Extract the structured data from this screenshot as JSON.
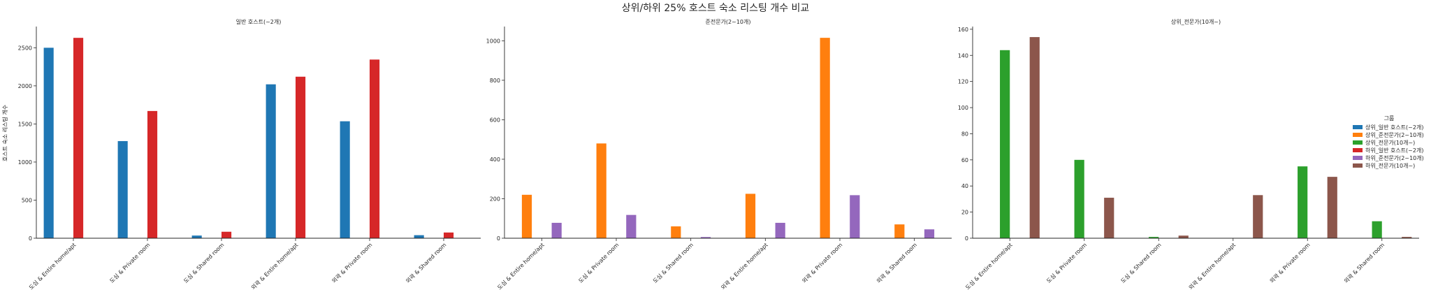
{
  "chart_data": {
    "type": "bar",
    "title": "상위/하위 25% 호스트 숙소 리스팅 개수 비교",
    "ylabel": "호스트 숙소 리스팅 개수",
    "categories": [
      "도심 & Entire home/apt",
      "도심 & Private room",
      "도심 & Shared room",
      "외곽 & Entire home/apt",
      "외곽 & Private room",
      "외곽 & Shared room"
    ],
    "legend": {
      "title": "그룹",
      "placement": "center-right",
      "entries": [
        {
          "name": "상위_일반 호스트(~2개)",
          "color": "#1f77b4"
        },
        {
          "name": "상위_준전문가(2~10개)",
          "color": "#ff7f0e"
        },
        {
          "name": "상위_전문가(10개~)",
          "color": "#2ca02c"
        },
        {
          "name": "하위_일반 호스트(~2개)",
          "color": "#d62728"
        },
        {
          "name": "하위_준전문가(2~10개)",
          "color": "#9467bd"
        },
        {
          "name": "하위_전문가(10개~)",
          "color": "#8c564b"
        }
      ]
    },
    "panels": [
      {
        "title": "일반 호스트(~2개)",
        "ylim": [
          0,
          2760
        ],
        "yticks": [
          0,
          500,
          1000,
          1500,
          2000,
          2500
        ],
        "series": [
          {
            "name": "상위_일반 호스트(~2개)",
            "color": "#1f77b4",
            "slot": 0,
            "values": [
              2500,
              1275,
              35,
              2020,
              1535,
              40
            ]
          },
          {
            "name": "하위_일반 호스트(~2개)",
            "color": "#d62728",
            "slot": 3,
            "values": [
              2630,
              1670,
              85,
              2120,
              2345,
              75
            ]
          }
        ]
      },
      {
        "title": "준전문가(2~10개)",
        "ylim": [
          0,
          1065
        ],
        "yticks": [
          0,
          200,
          400,
          600,
          800,
          1000
        ],
        "series": [
          {
            "name": "상위_준전문가(2~10개)",
            "color": "#ff7f0e",
            "slot": 1,
            "values": [
              220,
              480,
              60,
              225,
              1015,
              70
            ]
          },
          {
            "name": "하위_준전문가(2~10개)",
            "color": "#9467bd",
            "slot": 4,
            "values": [
              78,
              118,
              6,
              78,
              218,
              45
            ]
          }
        ]
      },
      {
        "title": "상위_전문가(10개~)",
        "ylim": [
          0,
          161
        ],
        "yticks": [
          0,
          20,
          40,
          60,
          80,
          100,
          120,
          140,
          160
        ],
        "series": [
          {
            "name": "상위_전문가(10개~)",
            "color": "#2ca02c",
            "slot": 2,
            "values": [
              144,
              60,
              1,
              0,
              55,
              13
            ]
          },
          {
            "name": "하위_전문가(10개~)",
            "color": "#8c564b",
            "slot": 5,
            "values": [
              154,
              31,
              2,
              33,
              47,
              1
            ]
          }
        ]
      }
    ]
  }
}
